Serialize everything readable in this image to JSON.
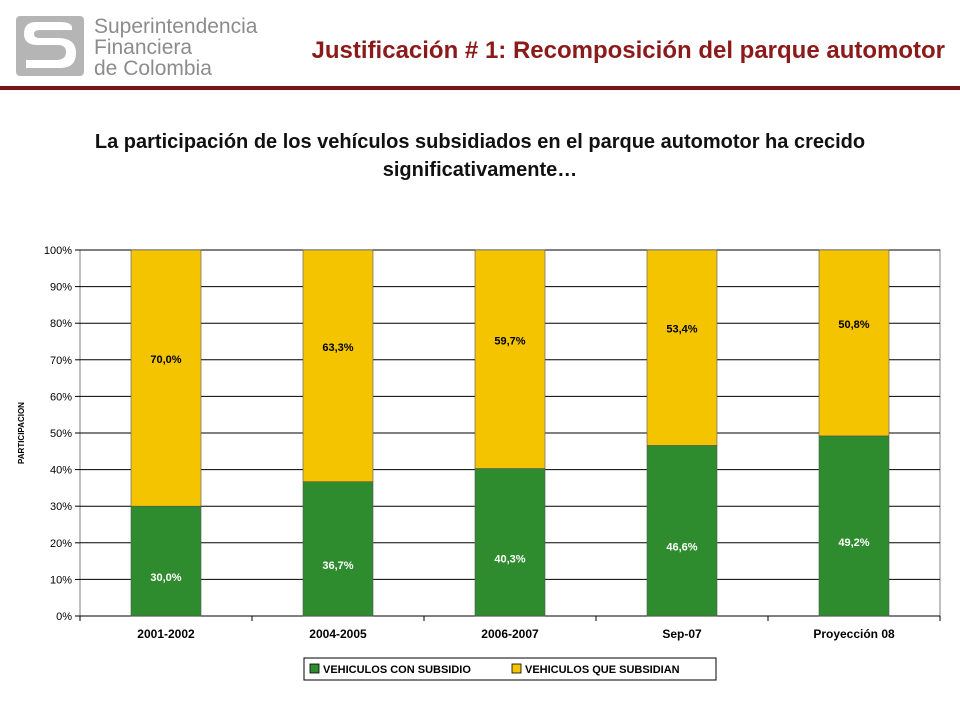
{
  "header": {
    "logo_lines": [
      "Superintendencia",
      "Financiera",
      "de Colombia"
    ],
    "logo_icon": "sfc-s-logo-icon",
    "title": "Justificación # 1: Recomposición del parque automotor"
  },
  "subtitle_lines": [
    "La participación de los vehículos subsidiados en el parque automotor ha crecido",
    "significativamente…"
  ],
  "colors": {
    "title": "#8b1a1a",
    "rule": "#7a1515",
    "subsidio": "#2e8b2e",
    "subsidian": "#f5c400"
  },
  "chart_data": {
    "type": "bar",
    "stacked": true,
    "categories": [
      "2001-2002",
      "2004-2005",
      "2006-2007",
      "Sep-07",
      "Proyección 08"
    ],
    "series": [
      {
        "name": "VEHICULOS CON SUBSIDIO",
        "values": [
          30.0,
          36.7,
          40.3,
          46.6,
          49.2
        ],
        "labels": [
          "30,0%",
          "36,7%",
          "40,3%",
          "46,6%",
          "49,2%"
        ],
        "color": "#2e8b2e"
      },
      {
        "name": "VEHICULOS QUE SUBSIDIAN",
        "values": [
          70.0,
          63.3,
          59.7,
          53.4,
          50.8
        ],
        "labels": [
          "70,0%",
          "63,3%",
          "59,7%",
          "53,4%",
          "50,8%"
        ],
        "color": "#f5c400"
      }
    ],
    "title": "",
    "xlabel": "",
    "ylabel": "PARTICIPACION",
    "ylim": [
      0,
      100
    ],
    "yticks": [
      "0%",
      "10%",
      "20%",
      "30%",
      "40%",
      "50%",
      "60%",
      "70%",
      "80%",
      "90%",
      "100%"
    ],
    "grid": true,
    "legend": "bottom"
  }
}
